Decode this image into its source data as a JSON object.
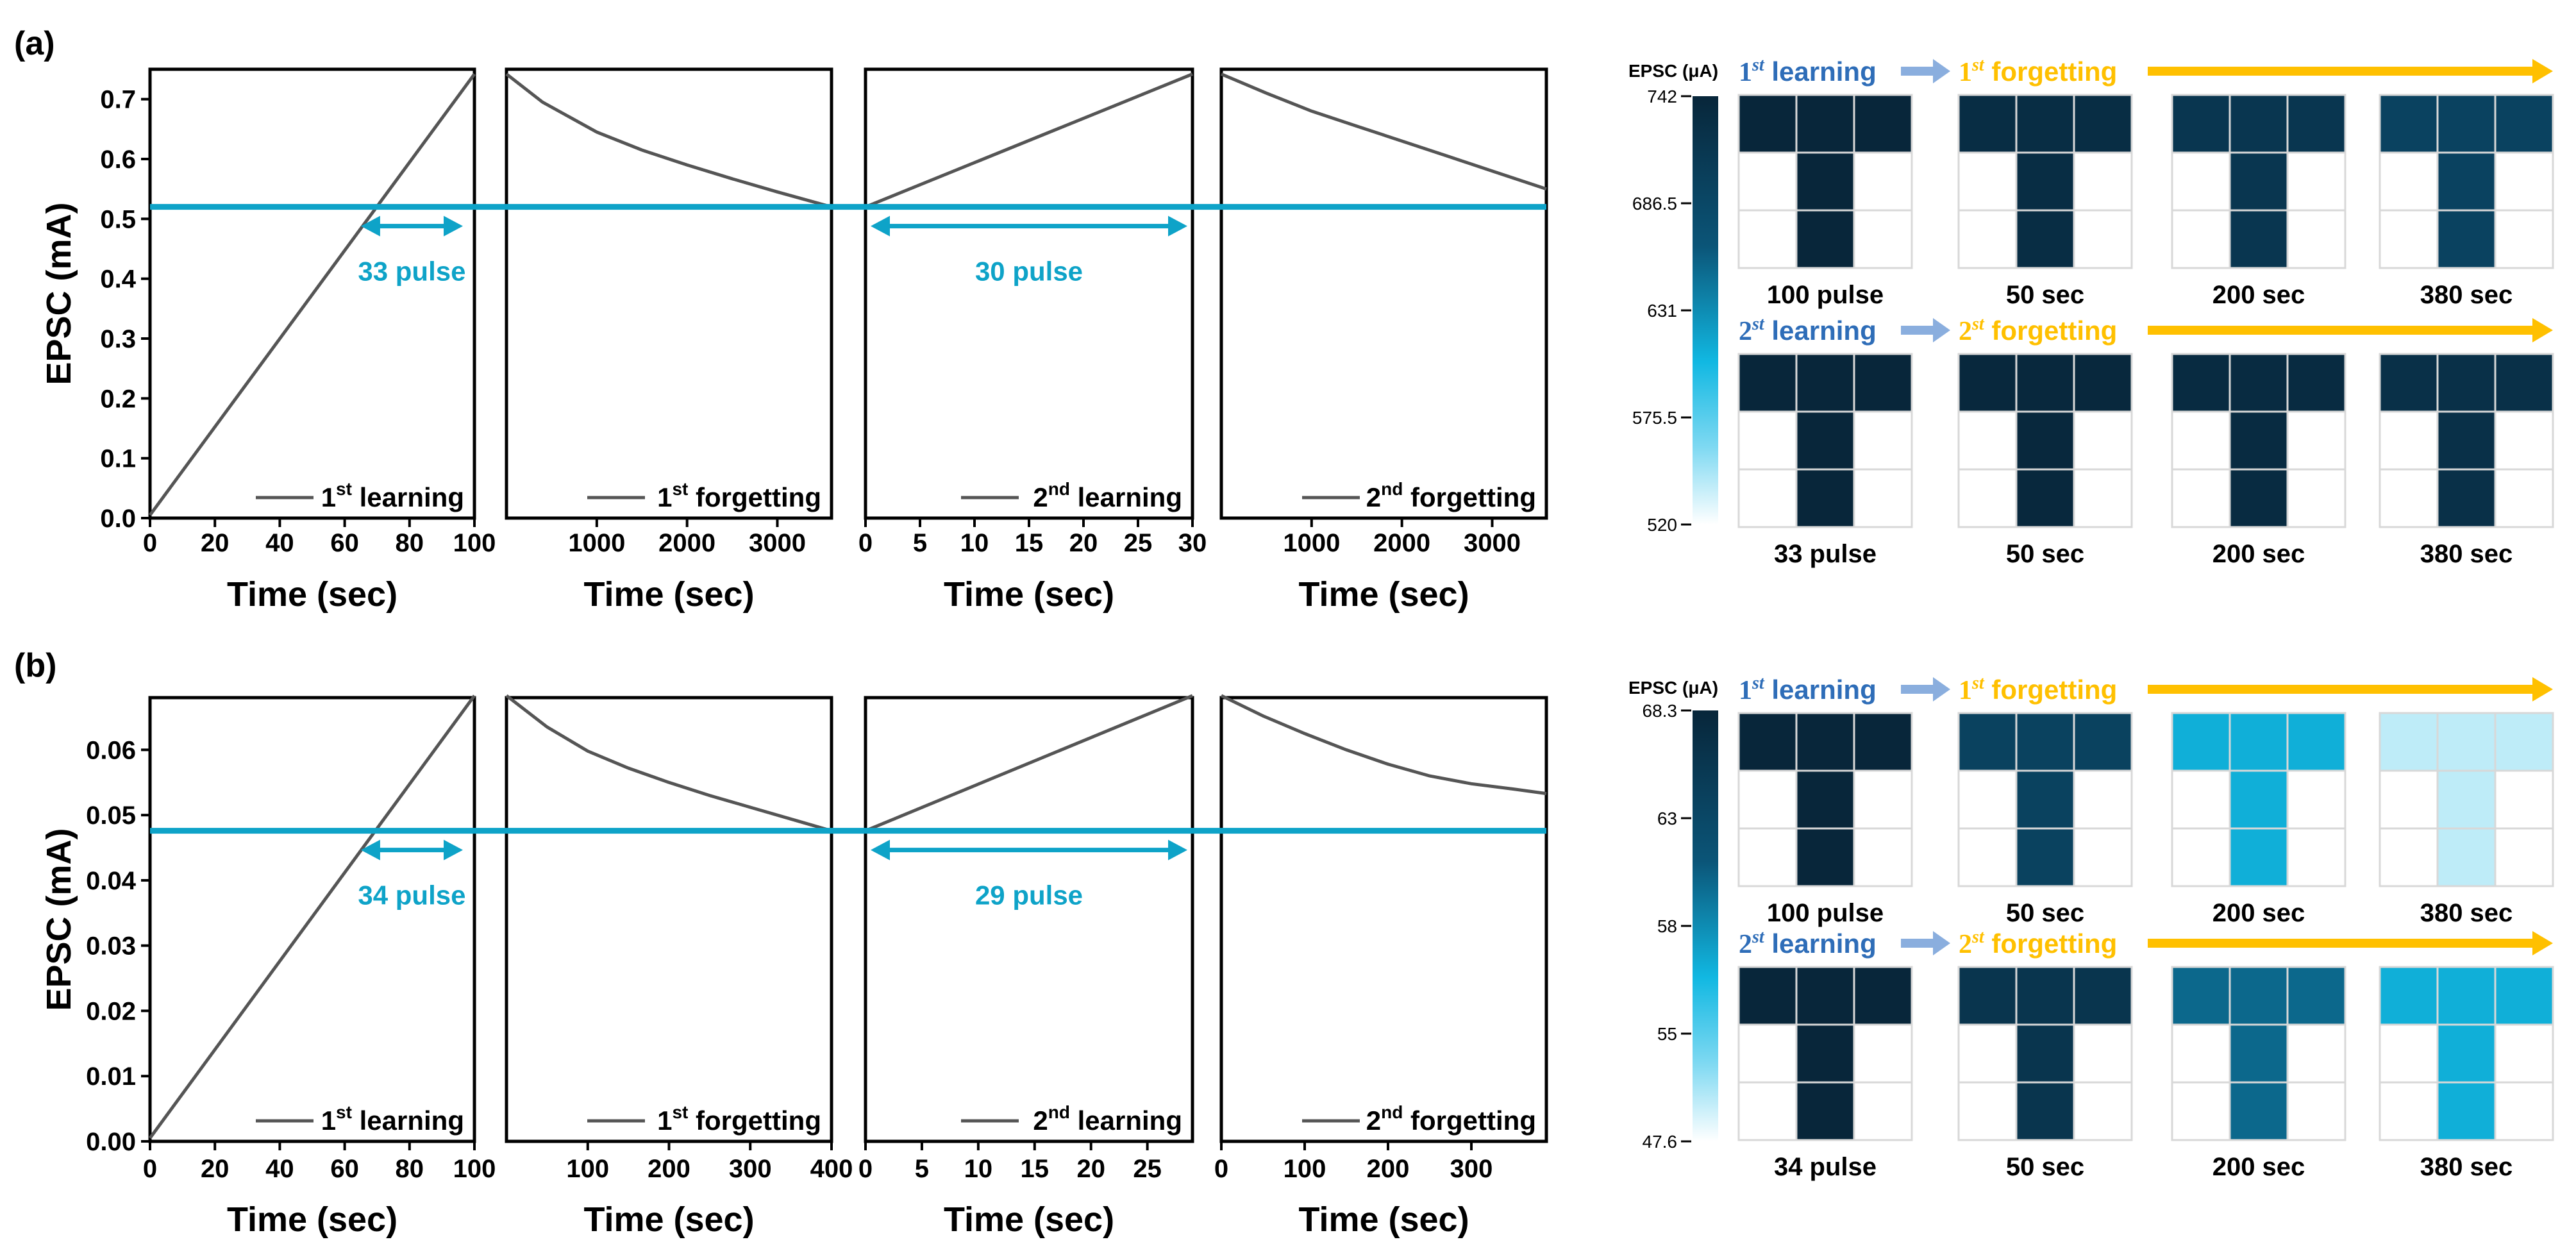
{
  "colors": {
    "trace": "#555555",
    "threshold": "#0ea3c8",
    "learning_text": "#2e6db8",
    "learning_arrow": "#8aaede",
    "forgetting": "#ffc000",
    "grid_line": "#d8d8d8"
  },
  "panels": [
    {
      "label": "(a)",
      "y_label": "EPSC (mA)",
      "x_label": "Time (sec)",
      "y_ticks": [
        "0.0",
        "0.1",
        "0.2",
        "0.3",
        "0.4",
        "0.5",
        "0.6",
        "0.7"
      ],
      "threshold": 0.52,
      "annotations": [
        "33 pulse",
        "30 pulse"
      ],
      "chart_data": [
        {
          "type": "line",
          "legend_sup": "st",
          "legend_pre": "1",
          "legend_text": "learning",
          "x_ticks": [
            "0",
            "20",
            "40",
            "60",
            "80",
            "100"
          ],
          "xlim": [
            0,
            100
          ],
          "ylim": [
            0,
            0.75
          ],
          "x": [
            0,
            100
          ],
          "y": [
            0.005,
            0.742
          ]
        },
        {
          "type": "line",
          "legend_sup": "st",
          "legend_pre": "1",
          "legend_text": "forgetting",
          "x_ticks": [
            "1000",
            "2000",
            "3000"
          ],
          "xlim": [
            0,
            3600
          ],
          "ylim": [
            0,
            0.75
          ],
          "x": [
            0,
            400,
            1000,
            1500,
            2000,
            2500,
            3000,
            3600
          ],
          "y": [
            0.742,
            0.695,
            0.645,
            0.615,
            0.59,
            0.567,
            0.545,
            0.52
          ]
        },
        {
          "type": "line",
          "legend_sup": "nd",
          "legend_pre": "2",
          "legend_text": "learning",
          "x_ticks": [
            "0",
            "5",
            "10",
            "15",
            "20",
            "25",
            "30"
          ],
          "xlim": [
            0,
            30
          ],
          "ylim": [
            0,
            0.75
          ],
          "x": [
            0,
            30
          ],
          "y": [
            0.52,
            0.742
          ]
        },
        {
          "type": "line",
          "legend_sup": "nd",
          "legend_pre": "2",
          "legend_text": "forgetting",
          "x_ticks": [
            "1000",
            "2000",
            "3000"
          ],
          "xlim": [
            0,
            3600
          ],
          "ylim": [
            0,
            0.75
          ],
          "x": [
            0,
            500,
            1000,
            1500,
            2000,
            2500,
            3000,
            3600
          ],
          "y": [
            0.742,
            0.71,
            0.68,
            0.655,
            0.63,
            0.605,
            0.58,
            0.55
          ]
        }
      ],
      "colorbar": {
        "title": "EPSC (μA)",
        "ticks": [
          "742",
          "686.5",
          "631",
          "575.5",
          "520"
        ],
        "range": [
          520,
          742
        ]
      },
      "rows": [
        {
          "phase_learn_num": "1",
          "phase_learn_sup": "st",
          "phase_learn_word": "learning",
          "phase_forget_num": "1",
          "phase_forget_sup": "st",
          "phase_forget_word": "forgetting",
          "cells": [
            {
              "caption": "100 pulse",
              "value": 742
            },
            {
              "caption": "50 sec",
              "value": 730
            },
            {
              "caption": "200 sec",
              "value": 715
            },
            {
              "caption": "380 sec",
              "value": 695
            }
          ]
        },
        {
          "phase_learn_num": "2",
          "phase_learn_sup": "st",
          "phase_learn_word": "learning",
          "phase_forget_num": "2",
          "phase_forget_sup": "st",
          "phase_forget_word": "forgetting",
          "cells": [
            {
              "caption": "33 pulse",
              "value": 742
            },
            {
              "caption": "50 sec",
              "value": 738
            },
            {
              "caption": "200 sec",
              "value": 733
            },
            {
              "caption": "380 sec",
              "value": 725
            }
          ]
        }
      ]
    },
    {
      "label": "(b)",
      "y_label": "EPSC (mA)",
      "x_label": "Time (sec)",
      "y_ticks": [
        "0.00",
        "0.01",
        "0.02",
        "0.03",
        "0.04",
        "0.05",
        "0.06"
      ],
      "threshold": 0.0476,
      "annotations": [
        "34 pulse",
        "29 pulse"
      ],
      "chart_data": [
        {
          "type": "line",
          "legend_sup": "st",
          "legend_pre": "1",
          "legend_text": "learning",
          "x_ticks": [
            "0",
            "20",
            "40",
            "60",
            "80",
            "100"
          ],
          "xlim": [
            0,
            100
          ],
          "ylim": [
            0,
            0.068
          ],
          "x": [
            0,
            100
          ],
          "y": [
            0.0005,
            0.0683
          ]
        },
        {
          "type": "line",
          "legend_sup": "st",
          "legend_pre": "1",
          "legend_text": "forgetting",
          "x_ticks": [
            "100",
            "200",
            "300",
            "400"
          ],
          "xlim": [
            0,
            400
          ],
          "ylim": [
            0,
            0.068
          ],
          "x": [
            0,
            50,
            100,
            150,
            200,
            250,
            300,
            350,
            400
          ],
          "y": [
            0.0683,
            0.0635,
            0.0598,
            0.0572,
            0.055,
            0.053,
            0.0512,
            0.0494,
            0.0476
          ]
        },
        {
          "type": "line",
          "legend_sup": "nd",
          "legend_pre": "2",
          "legend_text": "learning",
          "x_ticks": [
            "0",
            "5",
            "10",
            "15",
            "20",
            "25"
          ],
          "xlim": [
            0,
            29
          ],
          "ylim": [
            0,
            0.068
          ],
          "x": [
            0,
            29
          ],
          "y": [
            0.0476,
            0.0683
          ]
        },
        {
          "type": "line",
          "legend_sup": "nd",
          "legend_pre": "2",
          "legend_text": "forgetting",
          "x_ticks": [
            "0",
            "100",
            "200",
            "300"
          ],
          "xlim": [
            0,
            390
          ],
          "ylim": [
            0,
            0.068
          ],
          "x": [
            0,
            50,
            100,
            150,
            200,
            250,
            300,
            350,
            390
          ],
          "y": [
            0.0683,
            0.0652,
            0.0625,
            0.06,
            0.0578,
            0.056,
            0.0548,
            0.054,
            0.0533
          ]
        }
      ],
      "colorbar": {
        "title": "EPSC (μA)",
        "ticks": [
          "68.3",
          "63",
          "58",
          "55",
          "47.6"
        ],
        "range": [
          47.6,
          68.3
        ]
      },
      "rows": [
        {
          "phase_learn_num": "1",
          "phase_learn_sup": "st",
          "phase_learn_word": "learning",
          "phase_forget_num": "1",
          "phase_forget_sup": "st",
          "phase_forget_word": "forgetting",
          "cells": [
            {
              "caption": "100 pulse",
              "value": 68.3
            },
            {
              "caption": "50 sec",
              "value": 64.0
            },
            {
              "caption": "200 sec",
              "value": 56.0
            },
            {
              "caption": "380 sec",
              "value": 49.5
            }
          ]
        },
        {
          "phase_learn_num": "2",
          "phase_learn_sup": "st",
          "phase_learn_word": "learning",
          "phase_forget_num": "2",
          "phase_forget_sup": "st",
          "phase_forget_word": "forgetting",
          "cells": [
            {
              "caption": "34 pulse",
              "value": 68.3
            },
            {
              "caption": "50 sec",
              "value": 66.0
            },
            {
              "caption": "200 sec",
              "value": 60.0
            },
            {
              "caption": "380 sec",
              "value": 56.0
            }
          ]
        }
      ]
    }
  ]
}
